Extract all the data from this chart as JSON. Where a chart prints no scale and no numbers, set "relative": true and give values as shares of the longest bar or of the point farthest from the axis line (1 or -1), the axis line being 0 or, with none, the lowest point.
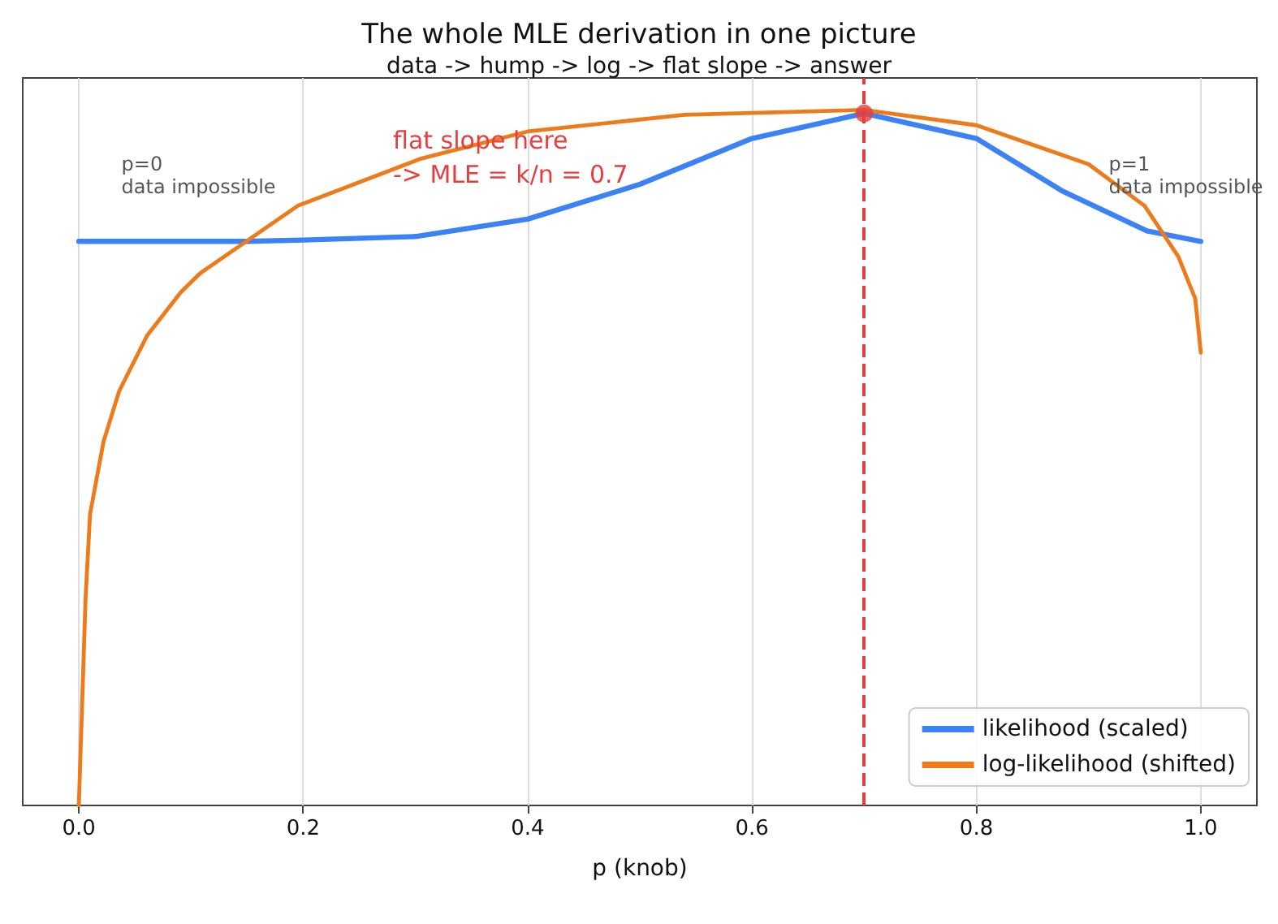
{
  "chart_data": {
    "type": "line",
    "title": "The whole MLE derivation in one picture",
    "subtitle": "data -> hump -> log -> flat slope -> answer",
    "xlabel": "p (knob)",
    "relative": true,
    "xlim": [
      -0.05,
      1.05
    ],
    "xticks": [
      {
        "value": 0,
        "label": "0.0"
      },
      0.2,
      0.4,
      0.6,
      0.8,
      {
        "value": 1,
        "label": "1.0"
      }
    ],
    "grid": "x",
    "legend": "bottom right",
    "tick_labels": "x",
    "marker": "none",
    "line_style": "solid",
    "series": [
      {
        "name": "likelihood (scaled)",
        "color": "#3b82f6",
        "x": [
          0,
          0.1,
          0.15,
          0.2,
          0.3,
          0.4,
          0.5,
          0.6,
          0.7,
          0.8,
          0.876,
          0.952,
          1.0
        ],
        "values": [
          0.811,
          0.811,
          0.811,
          0.813,
          0.818,
          0.843,
          0.893,
          0.959,
          0.995,
          0.959,
          0.884,
          0.826,
          0.811
        ]
      },
      {
        "name": "log-likelihood (shifted)",
        "color": "#ef7a1a",
        "x": [
          0.0,
          0.006,
          0.01,
          0.022,
          0.036,
          0.061,
          0.091,
          0.108,
          0.195,
          0.305,
          0.4,
          0.54,
          0.7,
          0.8,
          0.9,
          0.95,
          0.98,
          0.995,
          1.0
        ],
        "values": [
          0.0,
          0.298,
          0.419,
          0.523,
          0.596,
          0.676,
          0.738,
          0.765,
          0.862,
          0.93,
          0.969,
          0.993,
          1.0,
          0.978,
          0.922,
          0.862,
          0.789,
          0.729,
          0.651
        ]
      },
      {
        "type": "scatter",
        "color": "#e53e3e",
        "marker": "circle",
        "x": [
          0.7
        ],
        "values": [
          0.995
        ]
      }
    ],
    "ref_lines": [
      {
        "axis": "x",
        "value": 0.7,
        "color": "#e53e3e",
        "line_style": "dashed"
      }
    ],
    "annotations": [
      "flat slope here\n-> MLE = k/n = 0.7",
      "p=0\ndata impossible",
      "p=1\ndata impossible"
    ]
  }
}
